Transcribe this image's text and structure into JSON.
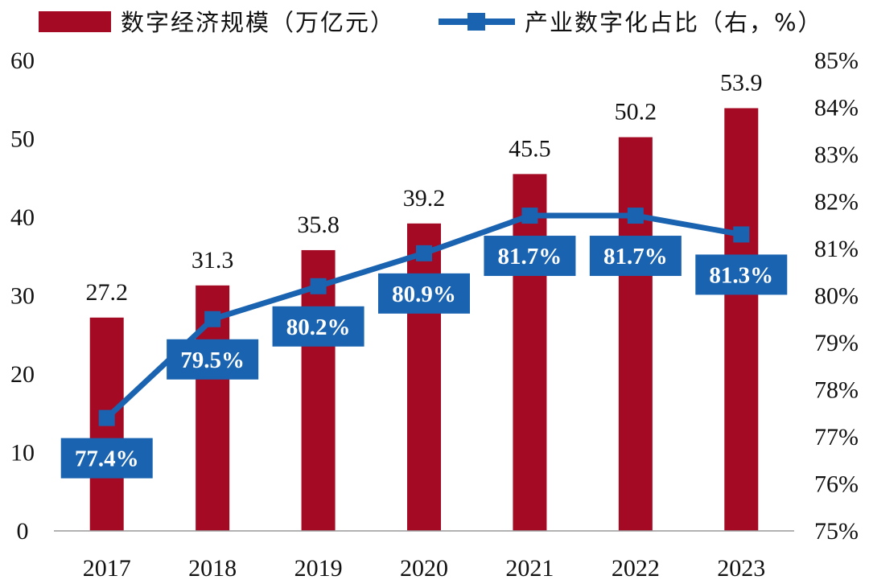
{
  "chart_data": {
    "type": "bar+line",
    "categories": [
      "2017",
      "2018",
      "2019",
      "2020",
      "2021",
      "2022",
      "2023"
    ],
    "series": [
      {
        "name": "数字经济规模（万亿元）",
        "type": "bar",
        "axis": "left",
        "color": "#A50A24",
        "values": [
          27.2,
          31.3,
          35.8,
          39.2,
          45.5,
          50.2,
          53.9
        ],
        "labels": [
          "27.2",
          "31.3",
          "35.8",
          "39.2",
          "45.5",
          "50.2",
          "53.9"
        ]
      },
      {
        "name": "产业数字化占比（右，%）",
        "type": "line",
        "marker": "square",
        "axis": "right",
        "color": "#1A63B0",
        "values": [
          77.4,
          79.5,
          80.2,
          80.9,
          81.7,
          81.7,
          81.3
        ],
        "labels": [
          "77.4%",
          "79.5%",
          "80.2%",
          "80.9%",
          "81.7%",
          "81.7%",
          "81.3%"
        ]
      }
    ],
    "y_left": {
      "min": 0,
      "max": 60,
      "step": 10,
      "ticks": [
        "0",
        "10",
        "20",
        "30",
        "40",
        "50",
        "60"
      ]
    },
    "y_right": {
      "min": 75,
      "max": 85,
      "step": 1,
      "ticks": [
        "75%",
        "76%",
        "77%",
        "78%",
        "79%",
        "80%",
        "81%",
        "82%",
        "83%",
        "84%",
        "85%"
      ]
    },
    "legend": "top",
    "grid": false
  }
}
